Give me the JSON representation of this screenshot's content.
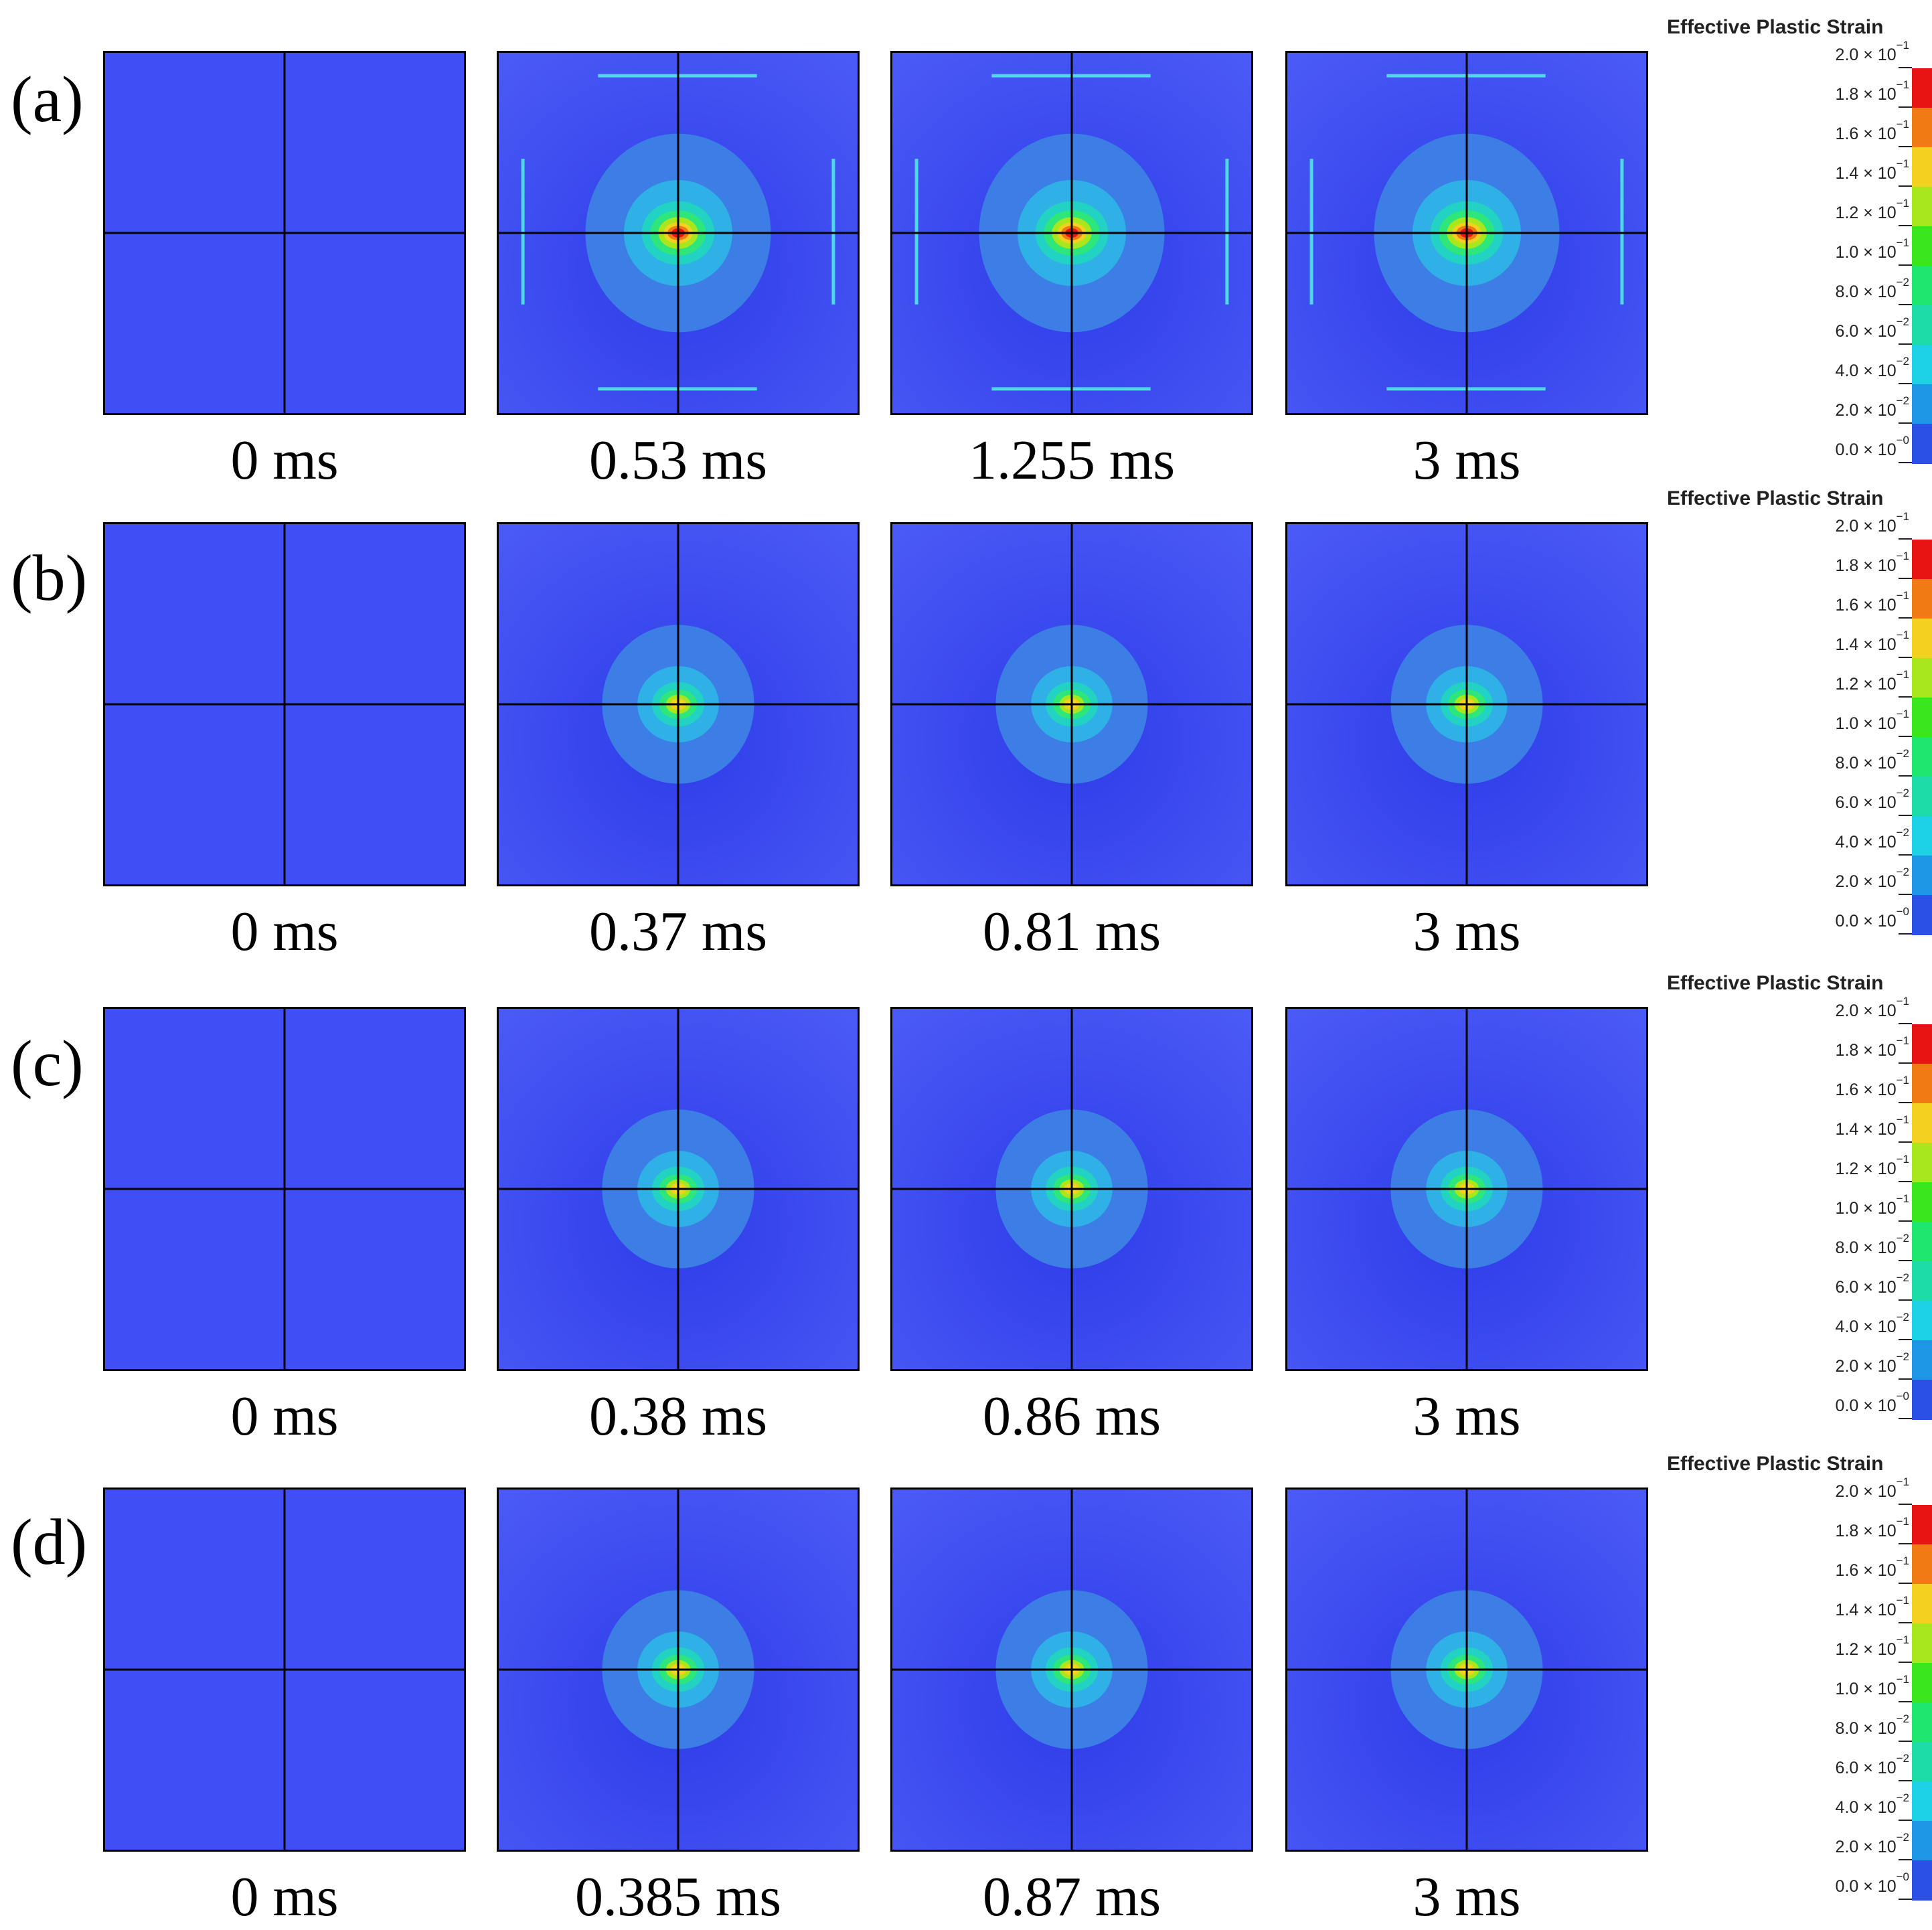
{
  "figure": {
    "legend": {
      "title": "Effective Plastic Strain",
      "ticks": [
        {
          "mantissa": "2.0 × 10",
          "exp": "−1"
        },
        {
          "mantissa": "1.8 × 10",
          "exp": "−1"
        },
        {
          "mantissa": "1.6 × 10",
          "exp": "−1"
        },
        {
          "mantissa": "1.4 × 10",
          "exp": "−1"
        },
        {
          "mantissa": "1.2 × 10",
          "exp": "−1"
        },
        {
          "mantissa": "1.0 × 10",
          "exp": "−1"
        },
        {
          "mantissa": "8.0 × 10",
          "exp": "−2"
        },
        {
          "mantissa": "6.0 × 10",
          "exp": "−2"
        },
        {
          "mantissa": "4.0 × 10",
          "exp": "−2"
        },
        {
          "mantissa": "2.0 × 10",
          "exp": "−2"
        },
        {
          "mantissa": "0.0 × 10",
          "exp": "−0"
        }
      ],
      "colors": [
        "#e81414",
        "#f07a14",
        "#f2d21e",
        "#a8e61e",
        "#3ae61e",
        "#1ee66e",
        "#1edca8",
        "#1ed2e6",
        "#1e96e6",
        "#2a50e6"
      ]
    },
    "rows": [
      {
        "label": "(a)",
        "panels": [
          {
            "time": "0 ms",
            "strain_level": 0,
            "edge_bands": false
          },
          {
            "time": "0.53 ms",
            "strain_level": 1.0,
            "edge_bands": true
          },
          {
            "time": "1.255 ms",
            "strain_level": 1.0,
            "edge_bands": true
          },
          {
            "time": "3 ms",
            "strain_level": 1.0,
            "edge_bands": true
          }
        ]
      },
      {
        "label": "(b)",
        "panels": [
          {
            "time": "0 ms",
            "strain_level": 0,
            "edge_bands": false
          },
          {
            "time": "0.37 ms",
            "strain_level": 0.7,
            "edge_bands": false
          },
          {
            "time": "0.81 ms",
            "strain_level": 0.7,
            "edge_bands": false
          },
          {
            "time": "3 ms",
            "strain_level": 0.7,
            "edge_bands": false
          }
        ]
      },
      {
        "label": "(c)",
        "panels": [
          {
            "time": "0 ms",
            "strain_level": 0,
            "edge_bands": false
          },
          {
            "time": "0.38 ms",
            "strain_level": 0.7,
            "edge_bands": false
          },
          {
            "time": "0.86 ms",
            "strain_level": 0.7,
            "edge_bands": false
          },
          {
            "time": "3 ms",
            "strain_level": 0.7,
            "edge_bands": false
          }
        ]
      },
      {
        "label": "(d)",
        "panels": [
          {
            "time": "0 ms",
            "strain_level": 0,
            "edge_bands": false
          },
          {
            "time": "0.385 ms",
            "strain_level": 0.7,
            "edge_bands": false
          },
          {
            "time": "0.87 ms",
            "strain_level": 0.7,
            "edge_bands": false
          },
          {
            "time": "3 ms",
            "strain_level": 0.7,
            "edge_bands": false
          }
        ]
      }
    ]
  }
}
